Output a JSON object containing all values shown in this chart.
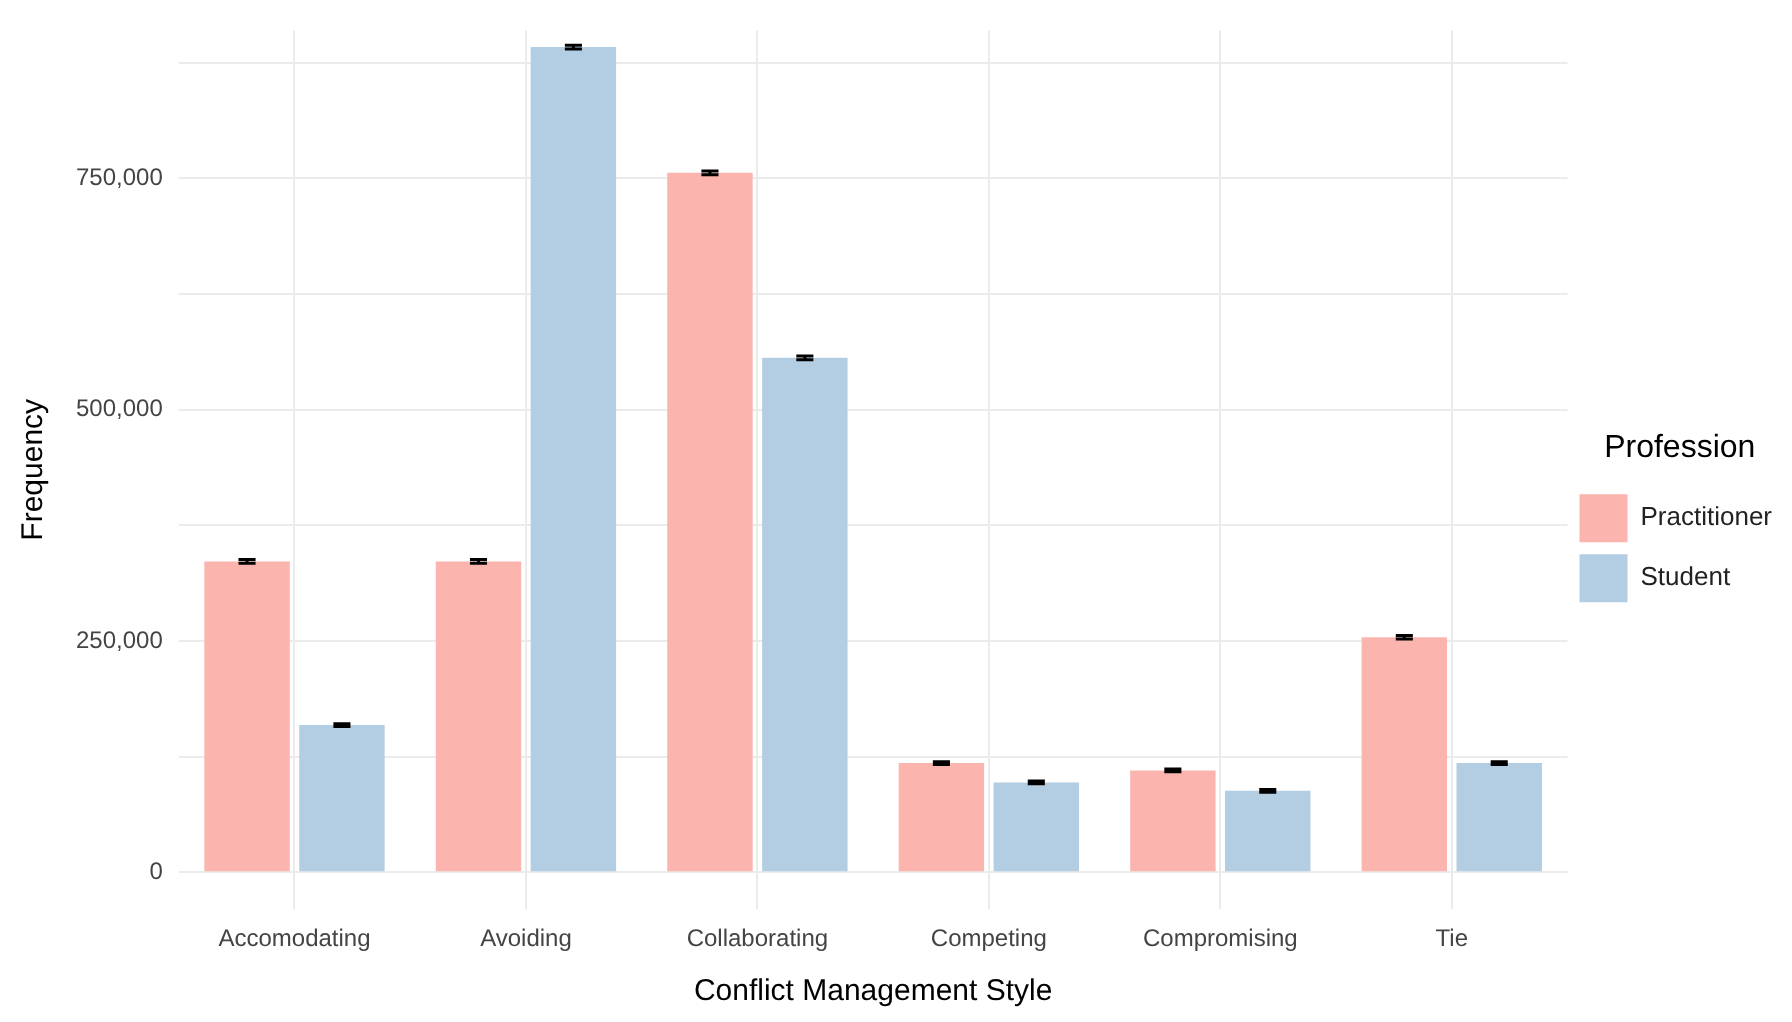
{
  "chart_data": {
    "type": "bar",
    "xlabel": "Conflict Management Style",
    "ylabel": "Frequency",
    "legend_title": "Profession",
    "legend": "right",
    "grid": true,
    "categories": [
      "Accomodating",
      "Avoiding",
      "Collaborating",
      "Competing",
      "Compromising",
      "Tie"
    ],
    "ylim": [
      -40000,
      910000
    ],
    "yticks": [
      {
        "value": 0,
        "label": "0"
      },
      {
        "value": 125000,
        "label": null
      },
      {
        "value": 250000,
        "label": "250,000"
      },
      {
        "value": 375000,
        "label": null
      },
      {
        "value": 500000,
        "label": "500,000"
      },
      {
        "value": 625000,
        "label": null
      },
      {
        "value": 750000,
        "label": "750,000"
      },
      {
        "value": 875000,
        "label": null
      }
    ],
    "series": [
      {
        "name": "Practitioner",
        "color": "#fbb4ae",
        "values": [
          336000,
          336000,
          756000,
          118000,
          110000,
          254000
        ],
        "errors": [
          2000,
          2000,
          2000,
          1500,
          1500,
          2000
        ]
      },
      {
        "name": "Student",
        "color": "#b3cde3",
        "values": [
          159000,
          892000,
          556000,
          97000,
          88000,
          118000
        ],
        "errors": [
          1500,
          2000,
          2000,
          1500,
          1500,
          1500
        ]
      }
    ]
  }
}
